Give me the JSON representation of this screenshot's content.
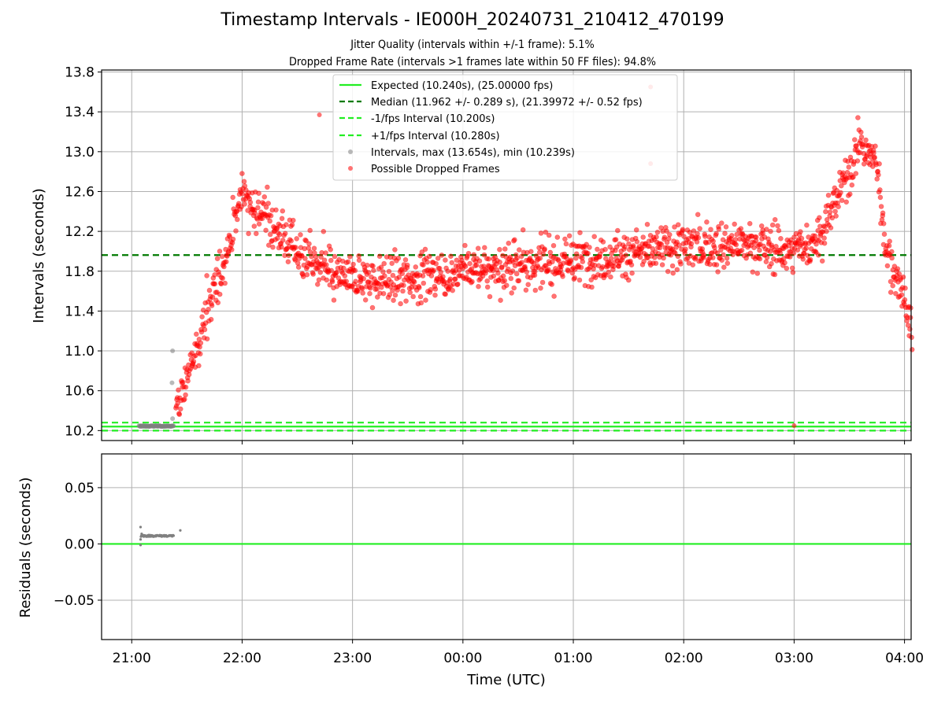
{
  "chart_data": [
    {
      "type": "scatter",
      "title": "Timestamp Intervals - IE000H_20240731_210412_470199",
      "subtitle_lines": [
        "Jitter Quality (intervals within +/-1 frame): 5.1%",
        "Dropped Frame Rate (intervals >1 frames late within 50 FF files): 94.8%"
      ],
      "xlabel": "",
      "ylabel": "Intervals (seconds)",
      "ylim": [
        10.1,
        13.82
      ],
      "yticks": [
        "10.2",
        "10.6",
        "11.0",
        "11.4",
        "11.8",
        "12.2",
        "12.6",
        "13.0",
        "13.4",
        "13.8"
      ],
      "ytick_values": [
        10.2,
        10.6,
        11.0,
        11.4,
        11.8,
        12.2,
        12.6,
        13.0,
        13.4,
        13.8
      ],
      "grid": true,
      "legend_position": "top-center",
      "lines": [
        {
          "name": "Expected (10.240s), (25.00000 fps)",
          "y": 10.24,
          "style": "solid",
          "color": "#22ee22"
        },
        {
          "name": "Median (11.962 +/- 0.289 s), (21.39972 +/- 0.52 fps)",
          "y": 11.962,
          "style": "dashed",
          "color": "#007a00"
        },
        {
          "name": "-1/fps Interval (10.200s)",
          "y": 10.2,
          "style": "dashed",
          "color": "#22ee22"
        },
        {
          "name": "+1/fps Interval (10.280s)",
          "y": 10.28,
          "style": "dashed",
          "color": "#22ee22"
        }
      ],
      "series": [
        {
          "name": "Intervals, max (13.654s), min (10.239s)",
          "color": "#808080",
          "summary": "about 60 grey points near 10.24-10.25 s between 21:04 and 21:23, a few near 10.3-11.0 s around 21:22"
        },
        {
          "name": "Possible Dropped Frames",
          "color": "#ff0000",
          "trend_x": [
            "21:24",
            "21:35",
            "21:45",
            "21:52",
            "22:00",
            "22:15",
            "22:30",
            "22:50",
            "23:10",
            "23:40",
            "00:00",
            "00:30",
            "01:00",
            "01:30",
            "02:00",
            "02:30",
            "03:00",
            "03:15",
            "03:25",
            "03:35",
            "03:45",
            "03:50",
            "04:00",
            "04:04"
          ],
          "trend_y": [
            10.35,
            11.0,
            11.6,
            12.0,
            12.6,
            12.3,
            12.0,
            11.75,
            11.7,
            11.75,
            11.8,
            11.85,
            11.9,
            11.97,
            12.05,
            12.08,
            12.0,
            12.15,
            12.6,
            13.05,
            12.9,
            12.0,
            11.55,
            11.1
          ]
        }
      ]
    },
    {
      "type": "scatter",
      "xlabel": "Time (UTC)",
      "ylabel": "Residuals (seconds)",
      "ylim": [
        -0.085,
        0.08
      ],
      "yticks": [
        "−0.05",
        "0.00",
        "0.05"
      ],
      "ytick_values": [
        -0.05,
        0.0,
        0.05
      ],
      "xticks": [
        "21:00",
        "22:00",
        "23:00",
        "00:00",
        "01:00",
        "02:00",
        "03:00",
        "04:00"
      ],
      "grid": true,
      "lines": [
        {
          "y": 0.0,
          "color": "#22ee22",
          "style": "solid"
        }
      ],
      "series": [
        {
          "color": "#808080",
          "summary": "grey residual points near 0.007 s between 21:05 and 21:23, one at 0.015 s and one at -0.001 s near 21:05, one at 0.012 s at 21:26"
        }
      ]
    }
  ],
  "colors": {
    "dropped": "#ff0000",
    "interval": "#808080",
    "expected": "#22ee22",
    "median": "#007a00"
  }
}
